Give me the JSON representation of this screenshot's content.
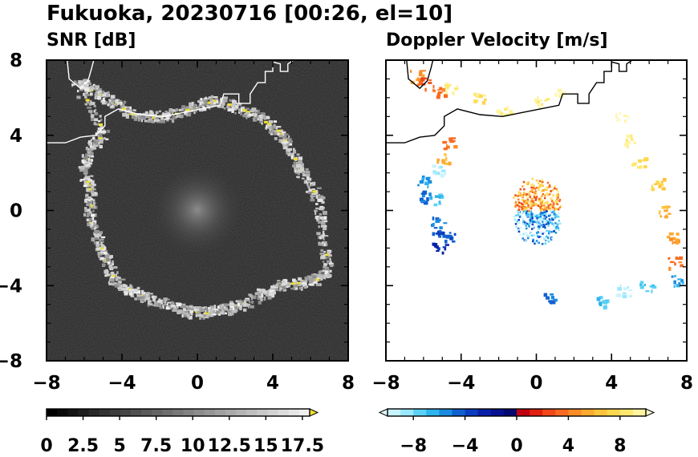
{
  "figure_title": "Fukuoka, 20230716 [00:26, el=10]",
  "panels": [
    {
      "title": "SNR [dB]",
      "background": "#1e1e1e"
    },
    {
      "title": "Doppler Velocity [m/s]",
      "background": "#ffffff"
    }
  ],
  "colorbars": [
    {
      "tick_labels": [
        "0",
        "2.5",
        "5",
        "7.5",
        "10",
        "12.5",
        "15",
        "17.5"
      ],
      "range": [
        0,
        18
      ],
      "extend": "max",
      "colors": [
        "#000000",
        "#0a0a0a",
        "#141414",
        "#1e1e1e",
        "#282828",
        "#323232",
        "#3c3c3c",
        "#464646",
        "#505050",
        "#5a5a5a",
        "#646464",
        "#6e6e6e",
        "#787878",
        "#828282",
        "#8c8c8c",
        "#969696",
        "#a0a0a0",
        "#aaaaaa",
        "#b4b4b4",
        "#bebebe",
        "#c8c8c8",
        "#d2d2d2",
        "#dcdcdc",
        "#e6e6e6",
        "#f0f0f0"
      ],
      "extend_color": "#f0e030"
    },
    {
      "tick_labels": [
        "−8",
        "−4",
        "0",
        "4",
        "8"
      ],
      "range": [
        -10,
        10
      ],
      "extend": "both",
      "colors": [
        "#c8f4ff",
        "#9ae8ff",
        "#5ad2f5",
        "#2eb4ee",
        "#1a8ce0",
        "#1060d0",
        "#0a3cbf",
        "#0820a8",
        "#061090",
        "#040870",
        "#c00010",
        "#e02010",
        "#f04818",
        "#f86a20",
        "#fb8c28",
        "#fcaa30",
        "#fdc43c",
        "#fdd850",
        "#fee870",
        "#fff4a0"
      ],
      "extend_low": "#e0fbff",
      "extend_high": "#fffad0"
    }
  ],
  "chart_data": [
    {
      "type": "heatmap",
      "title": "SNR [dB]",
      "xlim": [
        -8,
        8
      ],
      "ylim": [
        -8,
        8
      ],
      "x_ticks": [
        "−8",
        "−4",
        "0",
        "4",
        "8"
      ],
      "y_ticks": [
        "8",
        "4",
        "0",
        "−4",
        "−8"
      ],
      "value_range": [
        0,
        18
      ],
      "echo_ring_km": [
        [
          -6.4,
          6.8
        ],
        [
          -5.6,
          6.4
        ],
        [
          -4.8,
          6.0
        ],
        [
          -3.6,
          5.2
        ],
        [
          -2.4,
          5.0
        ],
        [
          -1.2,
          5.2
        ],
        [
          0.0,
          5.6
        ],
        [
          0.8,
          5.9
        ],
        [
          2.0,
          5.6
        ],
        [
          3.2,
          5.0
        ],
        [
          4.2,
          4.3
        ],
        [
          4.9,
          3.2
        ],
        [
          5.5,
          2.0
        ],
        [
          6.4,
          0.6
        ],
        [
          6.6,
          -1.4
        ],
        [
          6.9,
          -3.2
        ],
        [
          6.1,
          -3.7
        ],
        [
          4.4,
          -3.9
        ],
        [
          3.4,
          -4.4
        ],
        [
          2.2,
          -5.0
        ],
        [
          1.2,
          -5.2
        ],
        [
          0.4,
          -5.4
        ],
        [
          -0.6,
          -5.3
        ],
        [
          -1.6,
          -5.0
        ],
        [
          -2.7,
          -4.6
        ],
        [
          -3.6,
          -4.2
        ],
        [
          -4.4,
          -3.8
        ],
        [
          -4.9,
          -2.6
        ],
        [
          -5.3,
          -1.6
        ],
        [
          -5.8,
          -0.4
        ],
        [
          -5.7,
          1.0
        ],
        [
          -6.1,
          2.2
        ],
        [
          -5.7,
          3.4
        ],
        [
          -5.0,
          4.2
        ]
      ],
      "coastline_km": [
        [
          -8.0,
          3.6
        ],
        [
          -7.0,
          3.6
        ],
        [
          -6.2,
          3.9
        ],
        [
          -5.4,
          4.0
        ],
        [
          -4.9,
          4.5
        ],
        [
          -4.9,
          5.0
        ],
        [
          -4.2,
          5.4
        ],
        [
          -3.0,
          5.1
        ],
        [
          -1.8,
          5.0
        ],
        [
          -0.8,
          5.2
        ],
        [
          0.2,
          5.4
        ],
        [
          1.2,
          5.6
        ],
        [
          1.4,
          6.2
        ],
        [
          2.2,
          6.2
        ],
        [
          2.2,
          5.7
        ],
        [
          2.8,
          5.7
        ],
        [
          2.8,
          6.2
        ],
        [
          3.2,
          6.8
        ],
        [
          3.6,
          6.8
        ],
        [
          3.6,
          7.4
        ],
        [
          4.0,
          7.4
        ],
        [
          4.0,
          7.9
        ],
        [
          4.4,
          7.8
        ],
        [
          4.4,
          7.4
        ],
        [
          4.8,
          7.4
        ],
        [
          4.8,
          7.8
        ],
        [
          5.1,
          8.0
        ]
      ],
      "island_km": [
        [
          -6.9,
          8.0
        ],
        [
          -6.8,
          7.0
        ],
        [
          -6.2,
          6.5
        ],
        [
          -5.8,
          6.9
        ],
        [
          -5.6,
          7.6
        ],
        [
          -5.5,
          8.0
        ]
      ]
    },
    {
      "type": "heatmap",
      "title": "Doppler Velocity [m/s]",
      "xlim": [
        -8,
        8
      ],
      "ylim": [
        -8,
        8
      ],
      "x_ticks": [
        "−8",
        "−4",
        "0",
        "4",
        "8"
      ],
      "y_ticks": [
        "8",
        "4",
        "0",
        "−4",
        "−8"
      ],
      "value_range": [
        -10,
        10
      ],
      "velocity_echoes": [
        {
          "x": -6.4,
          "y": 7.2,
          "v": 5
        },
        {
          "x": -6.0,
          "y": 6.8,
          "v": 3
        },
        {
          "x": -5.2,
          "y": 6.4,
          "v": 4
        },
        {
          "x": -4.6,
          "y": 6.6,
          "v": 9
        },
        {
          "x": -3.0,
          "y": 6.0,
          "v": 8
        },
        {
          "x": -1.8,
          "y": 5.4,
          "v": 9
        },
        {
          "x": 0.2,
          "y": 5.8,
          "v": 9
        },
        {
          "x": 1.2,
          "y": 6.2,
          "v": 10
        },
        {
          "x": 4.5,
          "y": 5.0,
          "v": 10
        },
        {
          "x": 4.8,
          "y": 3.8,
          "v": 9
        },
        {
          "x": 5.4,
          "y": 2.6,
          "v": 8
        },
        {
          "x": 6.4,
          "y": 1.5,
          "v": 7
        },
        {
          "x": 6.8,
          "y": 0.0,
          "v": 6
        },
        {
          "x": 7.1,
          "y": -1.4,
          "v": 5
        },
        {
          "x": 7.3,
          "y": -2.7,
          "v": 4
        },
        {
          "x": 7.4,
          "y": -3.7,
          "v": -6
        },
        {
          "x": 5.8,
          "y": -4.0,
          "v": -7
        },
        {
          "x": 4.6,
          "y": -4.2,
          "v": -9
        },
        {
          "x": 3.4,
          "y": -4.8,
          "v": -7
        },
        {
          "x": 0.7,
          "y": -4.6,
          "v": -5
        },
        {
          "x": -4.7,
          "y": 3.6,
          "v": 4
        },
        {
          "x": -5.0,
          "y": 2.8,
          "v": 6
        },
        {
          "x": -5.2,
          "y": 2.2,
          "v": -9
        },
        {
          "x": -6.0,
          "y": 1.6,
          "v": -6
        },
        {
          "x": -5.9,
          "y": 0.8,
          "v": -5
        },
        {
          "x": -5.4,
          "y": 0.6,
          "v": -7
        },
        {
          "x": -5.3,
          "y": -0.6,
          "v": -5
        },
        {
          "x": -5.2,
          "y": -1.2,
          "v": -4
        },
        {
          "x": -4.7,
          "y": -1.4,
          "v": -4
        },
        {
          "x": -5.2,
          "y": -2.0,
          "v": -3
        }
      ]
    }
  ]
}
